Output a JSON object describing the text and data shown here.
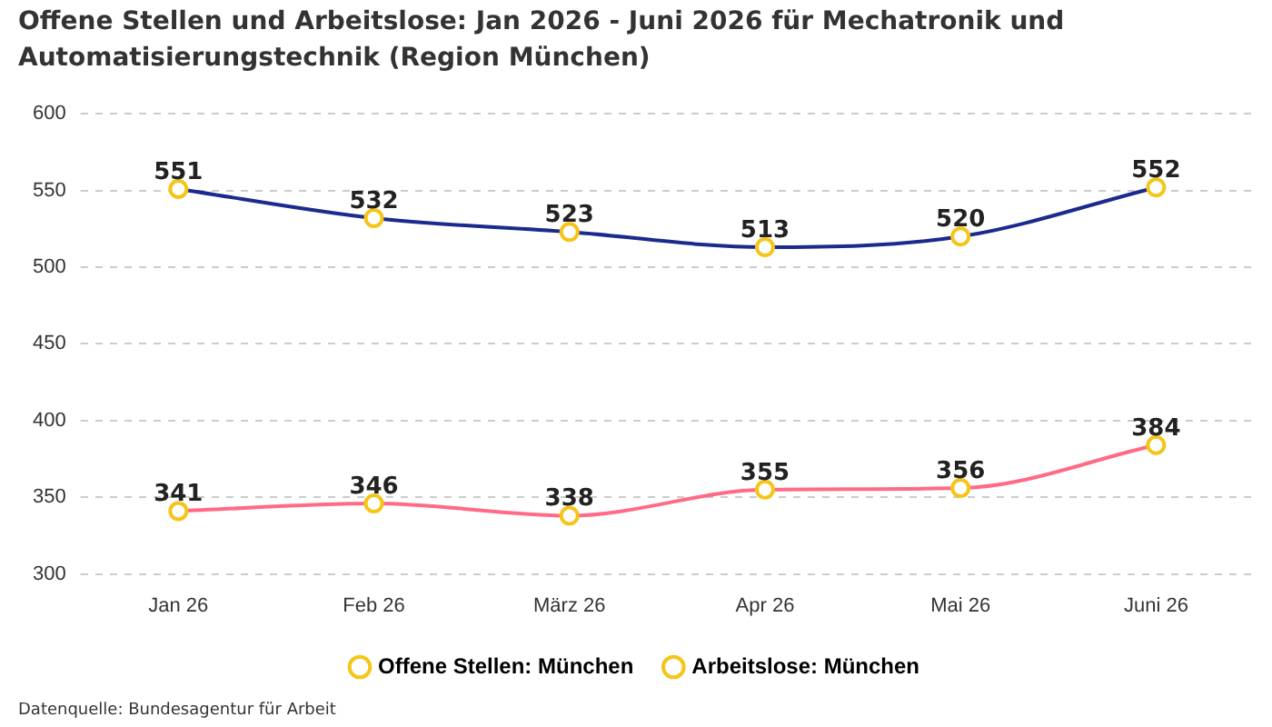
{
  "chart_data": {
    "type": "line",
    "title": "Offene Stellen und Arbeitslose: Jan 2026 - Juni 2026 für Mechatronik und Automatisierungstechnik (Region München)",
    "categories": [
      "Jan 26",
      "Feb 26",
      "März 26",
      "Apr 26",
      "Mai 26",
      "Juni 26"
    ],
    "series": [
      {
        "name": "Offene Stellen: München",
        "color": "#1b2a8c",
        "values": [
          551,
          532,
          523,
          513,
          520,
          552
        ]
      },
      {
        "name": "Arbeitslose: München",
        "color": "#ff6b85",
        "values": [
          341,
          346,
          338,
          355,
          356,
          384
        ]
      }
    ],
    "ylim": [
      300,
      600
    ],
    "yticks": [
      300,
      350,
      400,
      450,
      500,
      550,
      600
    ],
    "grid": "y",
    "legend": "bottom",
    "marker": "circle",
    "data_labels": true,
    "annotations": [
      "Datenquelle: Bundesagentur für Arbeit"
    ]
  }
}
